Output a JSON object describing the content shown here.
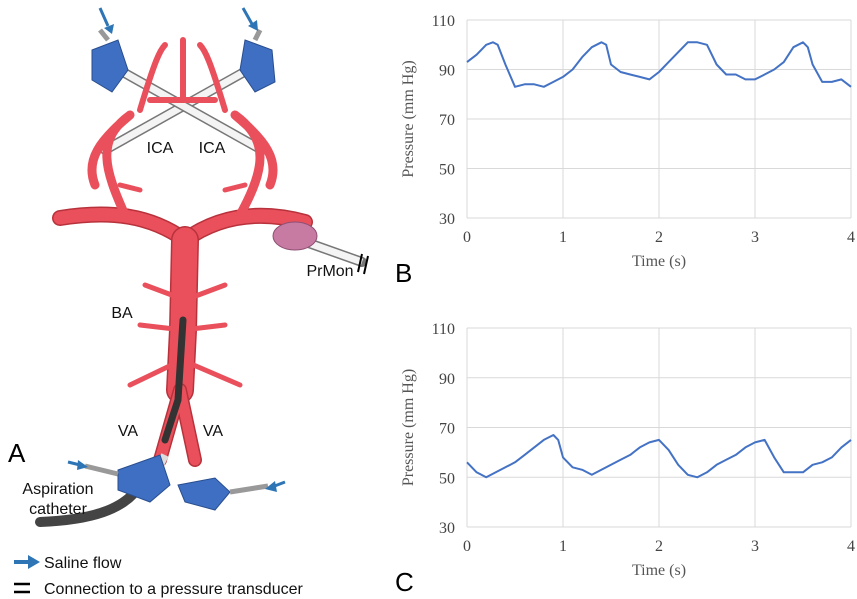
{
  "diagram": {
    "panel_label": "A",
    "labels": [
      "ICA",
      "ICA",
      "BA",
      "VA",
      "VA",
      "PrMon"
    ],
    "catheter_label": [
      "Aspiration",
      "catheter"
    ],
    "legend": [
      "Saline flow",
      "Connection to a pressure transducer"
    ]
  },
  "chart_data": [
    {
      "type": "line",
      "panel_label": "B",
      "x_label": "Time (s)",
      "y_label": "Pressure (mm Hg)",
      "x": [
        0,
        0.1,
        0.2,
        0.27,
        0.32,
        0.4,
        0.5,
        0.6,
        0.7,
        0.8,
        0.9,
        1.0,
        1.1,
        1.2,
        1.3,
        1.4,
        1.45,
        1.5,
        1.6,
        1.7,
        1.8,
        1.9,
        2.0,
        2.1,
        2.2,
        2.3,
        2.4,
        2.5,
        2.6,
        2.7,
        2.8,
        2.9,
        3.0,
        3.1,
        3.2,
        3.3,
        3.4,
        3.5,
        3.55,
        3.6,
        3.7,
        3.8,
        3.9,
        4.0
      ],
      "series": [
        {
          "color": "#4472c4",
          "values": [
            93,
            96,
            100,
            101,
            100,
            92,
            83,
            84,
            84,
            83,
            85,
            87,
            90,
            95,
            99,
            101,
            100,
            92,
            89,
            88,
            87,
            86,
            89,
            93,
            97,
            101,
            101,
            100,
            92,
            88,
            88,
            86,
            86,
            88,
            90,
            93,
            99,
            101,
            99,
            92,
            85,
            85,
            86,
            83
          ]
        }
      ],
      "xlim": [
        0,
        4
      ],
      "ylim": [
        30,
        110
      ],
      "xticks": [
        0,
        1,
        2,
        3,
        4
      ],
      "yticks": [
        30,
        50,
        70,
        90,
        110
      ],
      "grid": true
    },
    {
      "type": "line",
      "panel_label": "C",
      "x_label": "Time (s)",
      "y_label": "Pressure (mm Hg)",
      "x": [
        0,
        0.1,
        0.2,
        0.3,
        0.4,
        0.5,
        0.6,
        0.7,
        0.8,
        0.9,
        0.95,
        1.0,
        1.1,
        1.2,
        1.3,
        1.4,
        1.5,
        1.6,
        1.7,
        1.8,
        1.9,
        2.0,
        2.1,
        2.2,
        2.3,
        2.4,
        2.5,
        2.6,
        2.7,
        2.8,
        2.9,
        3.0,
        3.1,
        3.2,
        3.3,
        3.4,
        3.5,
        3.6,
        3.7,
        3.8,
        3.9,
        4.0
      ],
      "series": [
        {
          "color": "#4472c4",
          "values": [
            56,
            52,
            50,
            52,
            54,
            56,
            59,
            62,
            65,
            67,
            65,
            58,
            54,
            53,
            51,
            53,
            55,
            57,
            59,
            62,
            64,
            65,
            61,
            55,
            51,
            50,
            52,
            55,
            57,
            59,
            62,
            64,
            65,
            58,
            52,
            52,
            52,
            55,
            56,
            58,
            62,
            65
          ]
        }
      ],
      "xlim": [
        0,
        4
      ],
      "ylim": [
        30,
        110
      ],
      "xticks": [
        0,
        1,
        2,
        3,
        4
      ],
      "yticks": [
        30,
        50,
        70,
        90,
        110
      ],
      "grid": true
    }
  ]
}
